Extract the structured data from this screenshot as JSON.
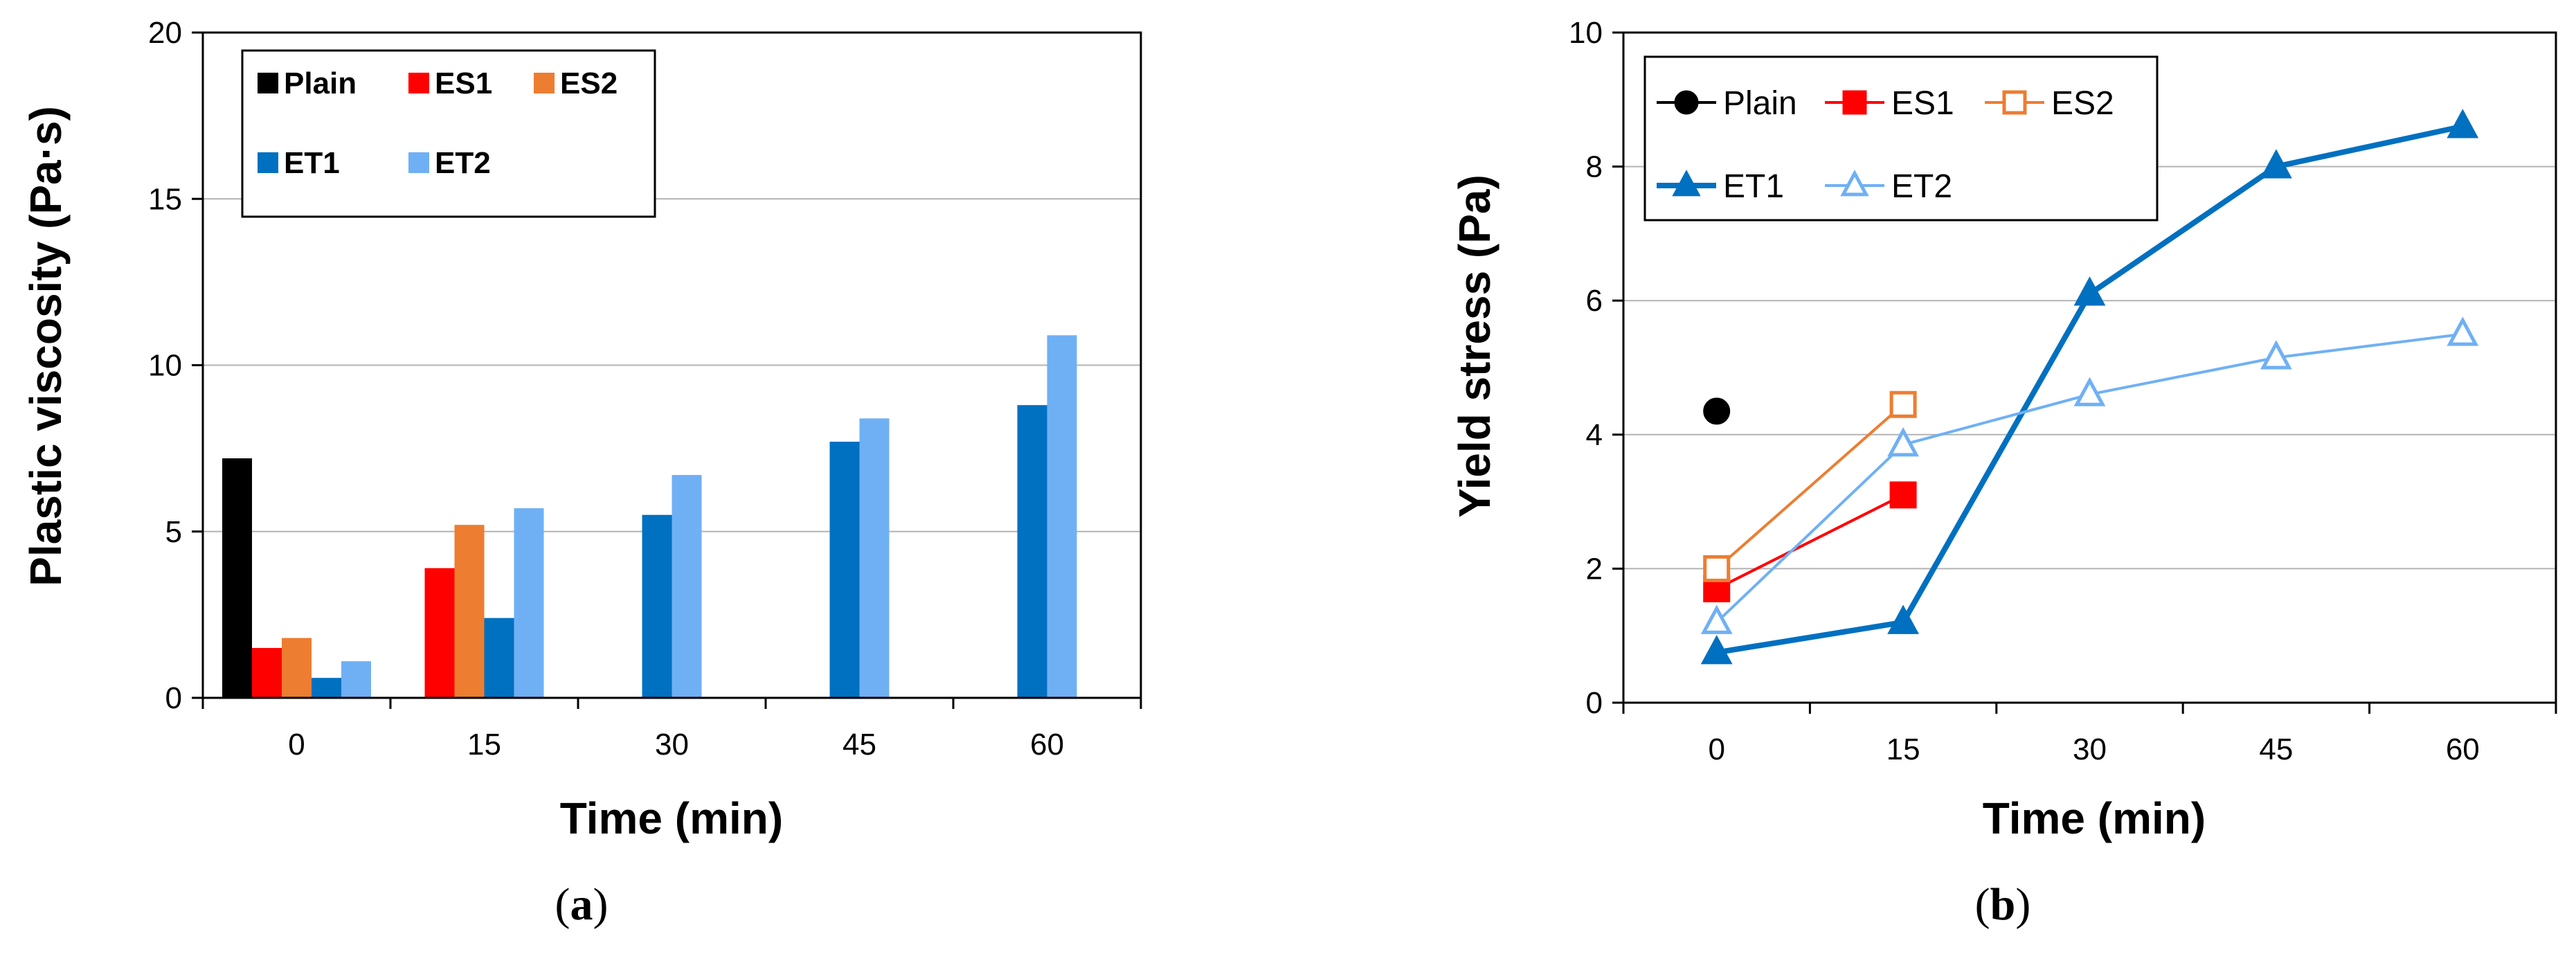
{
  "colors": {
    "Plain": "#000000",
    "ES1": "#ff0000",
    "ES2": "#ed7d31",
    "ET1": "#0070c0",
    "ET2": "#6fb0f5",
    "grid": "#b3b3b3"
  },
  "chart_data": [
    {
      "panel": "a",
      "type": "bar",
      "xlabel": "Time (min)",
      "ylabel": "Plastic viscosity (Pa·s)",
      "ylim": [
        0,
        20
      ],
      "yticks": [
        "0",
        "5",
        "10",
        "15",
        "20"
      ],
      "categories": [
        "0",
        "15",
        "30",
        "45",
        "60"
      ],
      "grid": true,
      "legend_position": "top-left",
      "series": [
        {
          "name": "Plain",
          "values": [
            7.2,
            null,
            null,
            null,
            null
          ]
        },
        {
          "name": "ES1",
          "values": [
            1.5,
            3.9,
            null,
            null,
            null
          ]
        },
        {
          "name": "ES2",
          "values": [
            1.8,
            5.2,
            null,
            null,
            null
          ]
        },
        {
          "name": "ET1",
          "values": [
            0.6,
            2.4,
            5.5,
            7.7,
            8.8
          ]
        },
        {
          "name": "ET2",
          "values": [
            1.1,
            5.7,
            6.7,
            8.4,
            10.9
          ]
        }
      ]
    },
    {
      "panel": "b",
      "type": "line",
      "xlabel": "Time (min)",
      "ylabel": "Yield stress (Pa)",
      "ylim": [
        0,
        10
      ],
      "yticks": [
        "0",
        "2",
        "4",
        "6",
        "8",
        "10"
      ],
      "categories": [
        "0",
        "15",
        "30",
        "45",
        "60"
      ],
      "grid": true,
      "legend_position": "top-left",
      "series": [
        {
          "name": "Plain",
          "marker": "circle",
          "filled": true,
          "values": [
            4.35,
            null,
            null,
            null,
            null
          ]
        },
        {
          "name": "ES1",
          "marker": "square",
          "filled": true,
          "values": [
            1.7,
            3.1,
            null,
            null,
            null
          ]
        },
        {
          "name": "ES2",
          "marker": "square",
          "filled": false,
          "values": [
            2.0,
            4.45,
            null,
            null,
            null
          ]
        },
        {
          "name": "ET1",
          "marker": "triangle",
          "filled": true,
          "values": [
            0.75,
            1.2,
            6.1,
            8.0,
            8.6
          ]
        },
        {
          "name": "ET2",
          "marker": "triangle",
          "filled": false,
          "values": [
            1.2,
            3.85,
            4.6,
            5.15,
            5.5
          ]
        }
      ]
    }
  ],
  "panel_labels": [
    {
      "open": "(",
      "letter": "a",
      "close": ")"
    },
    {
      "open": "(",
      "letter": "b",
      "close": ")"
    }
  ]
}
